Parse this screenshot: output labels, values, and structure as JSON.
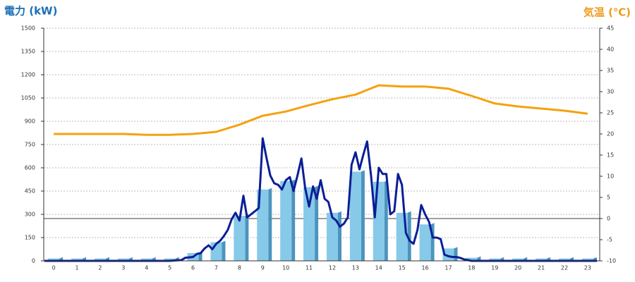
{
  "chart_data": {
    "type": "combo",
    "title": "電力 (kW)",
    "y2_title": "気温 (℃)",
    "categories": [
      "0",
      "1",
      "2",
      "3",
      "4",
      "5",
      "6",
      "7",
      "8",
      "9",
      "10",
      "11",
      "12",
      "13",
      "14",
      "15",
      "16",
      "17",
      "18",
      "19",
      "20",
      "21",
      "22",
      "23"
    ],
    "xlim": [
      -0.43,
      23.52
    ],
    "ylim": [
      0,
      1500
    ],
    "yticks": [
      0,
      150,
      300,
      450,
      600,
      750,
      900,
      1050,
      1200,
      1350,
      1500
    ],
    "y2lim": [
      -10,
      45
    ],
    "y2ticks": [
      -10,
      -5,
      0,
      5,
      10,
      15,
      20,
      25,
      30,
      35,
      40,
      45
    ],
    "grid": true,
    "series": [
      {
        "type": "bar",
        "color": "#87c9e8",
        "side_color": "#4b94bd",
        "values": [
          15,
          15,
          15,
          15,
          15,
          15,
          50,
          120,
          290,
          460,
          515,
          475,
          310,
          575,
          510,
          310,
          235,
          80,
          20,
          15,
          15,
          15,
          15,
          15
        ]
      },
      {
        "type": "line",
        "color": "#0a1e96",
        "x": [
          -0.4,
          5,
          5.5,
          5.67,
          6,
          6.17,
          6.33,
          6.5,
          6.67,
          6.83,
          7,
          7.17,
          7.33,
          7.5,
          7.67,
          7.83,
          8,
          8.17,
          8.33,
          8.5,
          8.67,
          8.83,
          9,
          9.17,
          9.33,
          9.5,
          9.67,
          9.83,
          10,
          10.17,
          10.33,
          10.5,
          10.67,
          10.83,
          11,
          11.17,
          11.33,
          11.5,
          11.67,
          11.83,
          12,
          12.17,
          12.33,
          12.5,
          12.67,
          12.83,
          13,
          13.17,
          13.33,
          13.5,
          13.67,
          13.83,
          14,
          14.17,
          14.33,
          14.5,
          14.67,
          14.83,
          15,
          15.17,
          15.33,
          15.5,
          15.67,
          15.83,
          16,
          16.17,
          16.33,
          16.5,
          16.67,
          16.83,
          17,
          17.17,
          17.33,
          17.5,
          17.67,
          17.83,
          18,
          23.4
        ],
        "values": [
          0,
          0,
          5,
          20,
          25,
          45,
          50,
          80,
          100,
          75,
          110,
          130,
          160,
          200,
          270,
          310,
          260,
          420,
          280,
          300,
          320,
          340,
          790,
          660,
          550,
          500,
          490,
          460,
          520,
          540,
          450,
          550,
          660,
          470,
          350,
          480,
          400,
          520,
          400,
          380,
          280,
          260,
          220,
          240,
          280,
          620,
          700,
          590,
          680,
          770,
          550,
          280,
          600,
          560,
          560,
          300,
          320,
          560,
          490,
          180,
          130,
          110,
          200,
          360,
          300,
          250,
          150,
          150,
          140,
          40,
          30,
          25,
          25,
          20,
          10,
          5,
          0,
          0
        ]
      },
      {
        "type": "line",
        "color": "#f5a10f",
        "axis": "y2",
        "values": [
          20,
          20,
          20,
          20,
          19.8,
          19.8,
          20,
          20.5,
          22.2,
          24.3,
          25.3,
          26.8,
          28.2,
          29.3,
          31.5,
          31.2,
          31.2,
          30.7,
          29,
          27.2,
          26.5,
          26,
          25.5,
          24.8
        ]
      }
    ]
  }
}
